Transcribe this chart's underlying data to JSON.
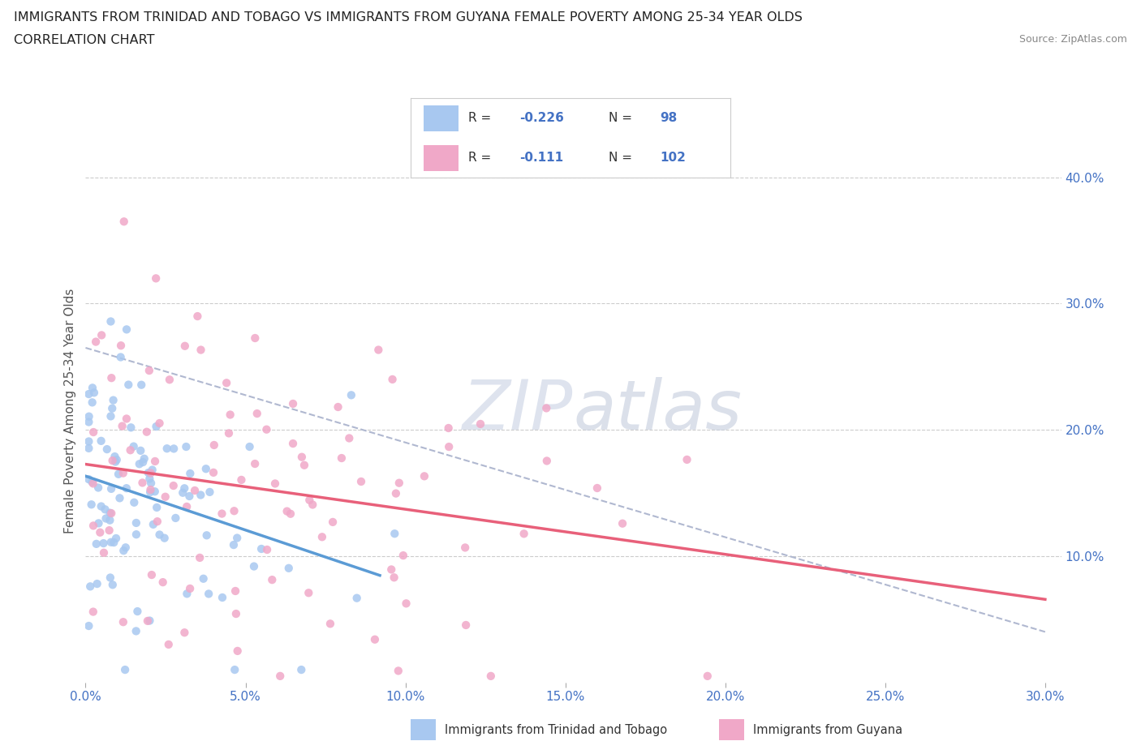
{
  "title_line1": "IMMIGRANTS FROM TRINIDAD AND TOBAGO VS IMMIGRANTS FROM GUYANA FEMALE POVERTY AMONG 25-34 YEAR OLDS",
  "title_line2": "CORRELATION CHART",
  "source_text": "Source: ZipAtlas.com",
  "ylabel": "Female Poverty Among 25-34 Year Olds",
  "watermark": "ZIPatlas",
  "blue_color": "#a8c8f0",
  "pink_color": "#f0a8c8",
  "blue_line_color": "#5b9bd5",
  "pink_line_color": "#e8607a",
  "dashed_line_color": "#b0b8d0",
  "text_color": "#4472c4",
  "label_color": "#555555",
  "grid_color": "#cccccc",
  "bg_color": "#ffffff",
  "xlim": [
    0.0,
    0.305
  ],
  "ylim": [
    0.0,
    0.43
  ],
  "xticks": [
    0.0,
    0.05,
    0.1,
    0.15,
    0.2,
    0.25,
    0.3
  ],
  "yticks_right": [
    0.1,
    0.2,
    0.3,
    0.4
  ],
  "scatter_size": 55,
  "scatter_alpha": 0.85
}
